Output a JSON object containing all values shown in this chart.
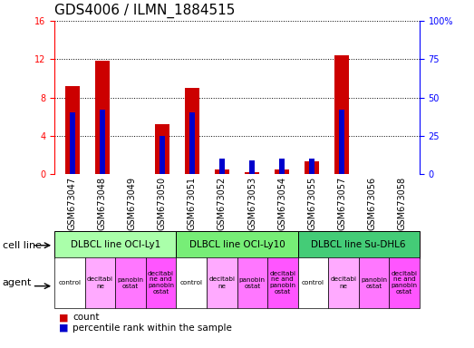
{
  "title": "GDS4006 / ILMN_1884515",
  "samples": [
    "GSM673047",
    "GSM673048",
    "GSM673049",
    "GSM673050",
    "GSM673051",
    "GSM673052",
    "GSM673053",
    "GSM673054",
    "GSM673055",
    "GSM673057",
    "GSM673056",
    "GSM673058"
  ],
  "counts": [
    9.2,
    11.8,
    0.0,
    5.2,
    9.0,
    0.5,
    0.2,
    0.5,
    1.3,
    12.4,
    0.0,
    0.0
  ],
  "percentiles": [
    40.0,
    42.0,
    0.0,
    25.0,
    40.0,
    10.0,
    9.0,
    10.0,
    10.0,
    42.0,
    0.0,
    0.0
  ],
  "ylim_left": [
    0,
    16
  ],
  "ylim_right": [
    0,
    100
  ],
  "yticks_left": [
    0,
    4,
    8,
    12,
    16
  ],
  "yticks_right": [
    0,
    25,
    50,
    75,
    100
  ],
  "bar_color_count": "#cc0000",
  "bar_color_pct": "#0000cc",
  "cell_lines": [
    {
      "label": "DLBCL line OCI-Ly1",
      "start": 0,
      "end": 4,
      "color": "#aaffaa"
    },
    {
      "label": "DLBCL line OCI-Ly10",
      "start": 4,
      "end": 8,
      "color": "#77ee77"
    },
    {
      "label": "DLBCL line Su-DHL6",
      "start": 8,
      "end": 12,
      "color": "#44cc77"
    }
  ],
  "agent_display": [
    {
      "label": "control",
      "color": "#ffffff"
    },
    {
      "label": "decitabi\nne",
      "color": "#ffaaff"
    },
    {
      "label": "panobin\nostat",
      "color": "#ff77ff"
    },
    {
      "label": "decitabi\nne and\npanobin\nostat",
      "color": "#ff55ff"
    },
    {
      "label": "control",
      "color": "#ffffff"
    },
    {
      "label": "decitabi\nne",
      "color": "#ffaaff"
    },
    {
      "label": "panobin\nostat",
      "color": "#ff77ff"
    },
    {
      "label": "decitabi\nne and\npanobin\nostat",
      "color": "#ff55ff"
    },
    {
      "label": "control",
      "color": "#ffffff"
    },
    {
      "label": "decitabi\nne",
      "color": "#ffaaff"
    },
    {
      "label": "panobin\nostat",
      "color": "#ff77ff"
    },
    {
      "label": "decitabi\nne and\npanobin\nostat",
      "color": "#ff55ff"
    }
  ],
  "bg_color": "#ffffff",
  "title_fontsize": 11,
  "tick_fontsize": 7,
  "label_fontsize": 8,
  "xticklabel_bg": "#cccccc"
}
